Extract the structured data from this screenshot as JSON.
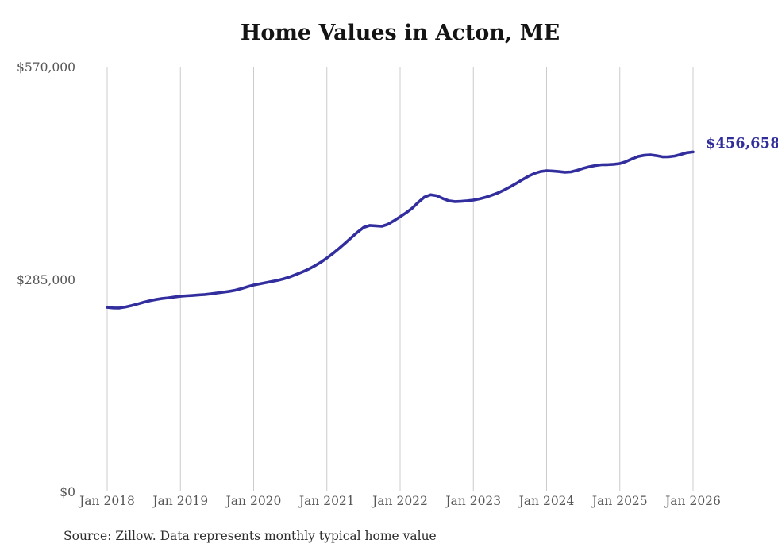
{
  "chart": {
    "source": "Source: Zillow. Data represents monthly typical home value",
    "colors": {
      "line": "#322e9e",
      "latest_value_text": "#312d9b",
      "grid": "#cccccc",
      "tick_text": "#565656",
      "title_text": "#141414",
      "source_text": "#2e2e2e"
    }
  },
  "chart_data": {
    "type": "line",
    "title": "Home Values in Acton, ME",
    "xlabel": "",
    "ylabel": "",
    "x_start_month": "Jan 2018",
    "x_end_month": "Jan 2026",
    "x_tick_labels": [
      "Jan 2018",
      "Jan 2019",
      "Jan 2020",
      "Jan 2021",
      "Jan 2022",
      "Jan 2023",
      "Jan 2024",
      "Jan 2025",
      "Jan 2026"
    ],
    "y_ticks": [
      {
        "label": "$0",
        "value": 0
      },
      {
        "label": "$285,000",
        "value": 285000
      },
      {
        "label": "$570,000",
        "value": 570000
      }
    ],
    "ylim": [
      0,
      570000
    ],
    "grid": "vertical-only",
    "legend_position": "none",
    "latest_value_label": "$456,658",
    "series_name": "Typical home value (monthly)",
    "values": [
      248200,
      247400,
      247300,
      248600,
      250500,
      252700,
      255000,
      257000,
      258700,
      260000,
      260900,
      262000,
      263100,
      263700,
      264200,
      264800,
      265400,
      266300,
      267400,
      268500,
      269600,
      271100,
      273300,
      275800,
      278100,
      279700,
      281300,
      282900,
      284500,
      286600,
      289200,
      292400,
      295700,
      299400,
      303700,
      308600,
      314300,
      320500,
      327200,
      334300,
      341700,
      348900,
      355300,
      358000,
      357500,
      356900,
      359600,
      364400,
      369700,
      375100,
      381400,
      389300,
      396200,
      399200,
      397900,
      394200,
      391100,
      390000,
      390400,
      391100,
      392100,
      393700,
      395800,
      398500,
      401600,
      405400,
      409700,
      414400,
      419300,
      424000,
      427800,
      430400,
      431500,
      431000,
      430400,
      429400,
      429900,
      432000,
      434700,
      436800,
      438400,
      439500,
      439600,
      440100,
      441100,
      443700,
      447400,
      450600,
      452200,
      452800,
      451700,
      450100,
      450200,
      451200,
      453300,
      455700,
      456658
    ]
  }
}
